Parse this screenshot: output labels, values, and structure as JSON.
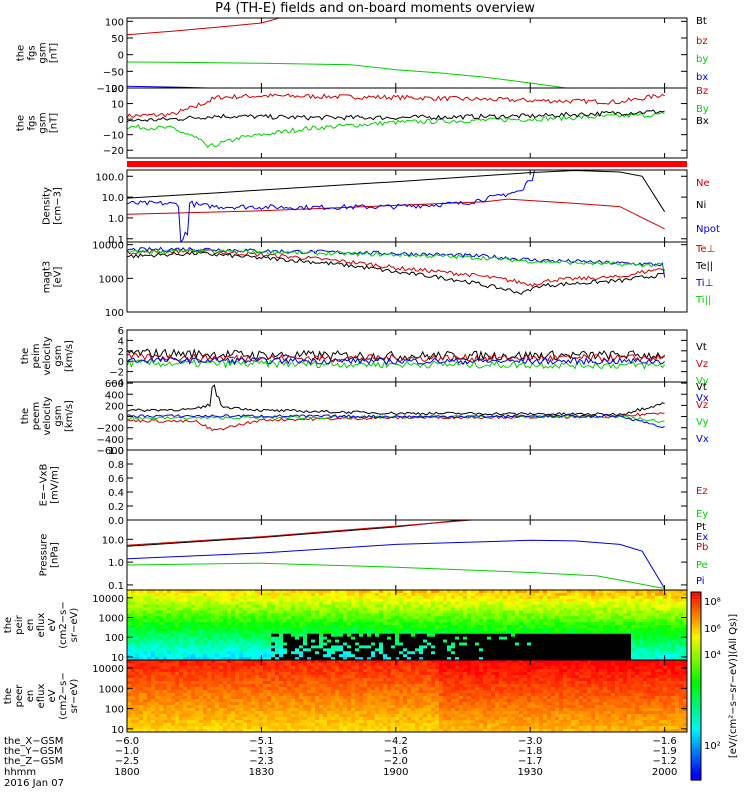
{
  "title": "P4 (TH-E) fields and on-board moments overview",
  "colors": {
    "black": "#000000",
    "red": "#d00000",
    "green": "#00d000",
    "blue": "#0000e0",
    "frame": "#000000"
  },
  "chart_data": [
    {
      "type": "line",
      "id": "fgs_gsm",
      "ylabel": [
        "the",
        "fgs",
        "gsm",
        "[nT]"
      ],
      "y_ticks": [
        {
          "v": 100,
          "t": "100"
        },
        {
          "v": 50,
          "t": "50"
        },
        {
          "v": 0,
          "t": "0"
        },
        {
          "v": -50,
          "t": "−50"
        },
        {
          "v": -100,
          "t": "−100"
        }
      ],
      "ylim": [
        -100,
        110
      ],
      "series": [
        {
          "name": "Bt",
          "color": "black",
          "x": [
            1800,
            1810
          ],
          "y": [
            -100,
            -100
          ]
        },
        {
          "name": "bz",
          "color": "red",
          "x": [
            1800,
            1810,
            1820,
            1830,
            1834
          ],
          "y": [
            60,
            70,
            82,
            95,
            110
          ]
        },
        {
          "name": "by",
          "color": "green",
          "x": [
            1800,
            1810,
            1820,
            1830,
            1840,
            1850,
            1900,
            1910,
            1920,
            1930,
            1938
          ],
          "y": [
            -22,
            -23,
            -24,
            -26,
            -28,
            -30,
            -45,
            -55,
            -68,
            -85,
            -100
          ]
        },
        {
          "name": "bx",
          "color": "blue",
          "x": [
            1800,
            1812,
            1818
          ],
          "y": [
            -95,
            -98,
            -100
          ]
        }
      ]
    },
    {
      "type": "line",
      "id": "fgs_dsl",
      "ylabel": [
        "the",
        "fgs",
        "gsm",
        "[nT]"
      ],
      "y_ticks": [
        {
          "v": 20,
          "t": "20"
        },
        {
          "v": 10,
          "t": "10"
        },
        {
          "v": 0,
          "t": "0"
        },
        {
          "v": -10,
          "t": "−10"
        },
        {
          "v": -20,
          "t": "−20"
        }
      ],
      "ylim": [
        -25,
        20
      ],
      "series": [
        {
          "name": "Bz",
          "color": "red",
          "x": [
            1800,
            1810,
            1815,
            1820,
            1830,
            1900,
            1930,
            1950,
            2000
          ],
          "y": [
            2,
            3,
            8,
            14,
            15,
            14,
            12,
            11,
            16
          ],
          "noise": 1.5
        },
        {
          "name": "By",
          "color": "green",
          "x": [
            1800,
            1810,
            1815,
            1818,
            1825,
            1840,
            1900,
            1930,
            2000
          ],
          "y": [
            -5,
            -6,
            -12,
            -18,
            -12,
            -6,
            -2,
            0,
            3
          ],
          "noise": 1.5
        },
        {
          "name": "Bx",
          "color": "black",
          "x": [
            1800,
            1810,
            1820,
            1840,
            1900,
            1930,
            2000
          ],
          "y": [
            -1,
            0,
            2,
            1,
            1,
            2,
            5
          ],
          "noise": 1.5
        }
      ]
    },
    {
      "type": "line",
      "id": "density",
      "ylabel": [
        "Density",
        "[cm−3]"
      ],
      "log": true,
      "y_ticks": [
        {
          "v": 100,
          "t": "100.0"
        },
        {
          "v": 10,
          "t": "10.0"
        },
        {
          "v": 1,
          "t": "1.0"
        },
        {
          "v": 0.1,
          "t": "0.1"
        }
      ],
      "ylim": [
        0.07,
        200
      ],
      "series": [
        {
          "name": "Ne",
          "color": "red",
          "x": [
            1800,
            1810,
            1830,
            1900,
            1920,
            1925,
            1940,
            1950,
            2000
          ],
          "y": [
            1.5,
            1.7,
            2.2,
            4,
            6,
            8,
            5,
            3.5,
            0.3
          ]
        },
        {
          "name": "Ni",
          "color": "black",
          "x": [
            1800,
            1810,
            1820,
            1830,
            1900,
            1930,
            1940,
            1950,
            1955,
            2000
          ],
          "y": [
            9,
            12,
            16,
            22,
            55,
            150,
            190,
            160,
            100,
            2
          ]
        },
        {
          "name": "Npot",
          "color": "blue",
          "x": [
            1800,
            1808,
            1811,
            1812,
            1813,
            1814,
            1816,
            1820,
            1840,
            1900,
            1915,
            1922,
            1928,
            1930,
            1931
          ],
          "y": [
            5,
            5,
            4.5,
            0.08,
            0.2,
            5,
            4,
            3.5,
            3.2,
            3.5,
            5,
            10,
            20,
            80,
            200
          ],
          "noise": 0.12
        }
      ]
    },
    {
      "type": "line",
      "id": "temps",
      "ylabel": [
        "magt3",
        "[eV]"
      ],
      "log": true,
      "y_ticks": [
        {
          "v": 10000,
          "t": "10000"
        },
        {
          "v": 1000,
          "t": "1000"
        },
        {
          "v": 100,
          "t": "100"
        }
      ],
      "ylim": [
        100,
        12000
      ],
      "series": [
        {
          "name": "Te⊥",
          "color": "red",
          "x": [
            1800,
            1815,
            1830,
            1900,
            1920,
            1930,
            1935,
            1950,
            2000
          ],
          "y": [
            6000,
            6500,
            5000,
            2000,
            1100,
            650,
            900,
            1100,
            2000
          ],
          "noise": 0.06
        },
        {
          "name": "Te||",
          "color": "black",
          "x": [
            1800,
            1815,
            1830,
            1900,
            1920,
            1928,
            1932,
            1950,
            2000
          ],
          "y": [
            4500,
            5500,
            4000,
            1500,
            600,
            360,
            600,
            850,
            1300
          ],
          "noise": 0.06
        },
        {
          "name": "Ti⊥",
          "color": "blue",
          "x": [
            1800,
            1815,
            1830,
            1900,
            1920,
            1930,
            1950,
            1990,
            2000
          ],
          "y": [
            7000,
            7500,
            6500,
            5500,
            4500,
            3500,
            2800,
            1800,
            1000
          ],
          "noise": 0.06
        },
        {
          "name": "Ti||",
          "color": "green",
          "x": [
            1800,
            1815,
            1830,
            1900,
            1920,
            1930,
            1950,
            1990,
            2000
          ],
          "y": [
            6000,
            6500,
            6000,
            5000,
            4000,
            3200,
            2600,
            1900,
            1500
          ],
          "noise": 0.06
        }
      ]
    },
    {
      "type": "line",
      "id": "peim",
      "ylabel": [
        "the",
        "peim",
        "velocity",
        "gsm",
        "[km/s]"
      ],
      "y_ticks": [
        {
          "v": 6,
          "t": "6"
        },
        {
          "v": 4,
          "t": "4"
        },
        {
          "v": 2,
          "t": "2"
        },
        {
          "v": 0,
          "t": "0"
        },
        {
          "v": -2,
          "t": "−2"
        },
        {
          "v": -4,
          "t": "−4"
        }
      ],
      "ylim": [
        -4,
        6
      ],
      "series": [
        {
          "name": "Vt",
          "color": "black",
          "x": [
            1800,
            1830,
            1900,
            2000
          ],
          "y": [
            1.6,
            1.2,
            1,
            1.2
          ],
          "noise": 0.9
        },
        {
          "name": "Vz",
          "color": "red",
          "x": [
            1800,
            1830,
            1900,
            2000
          ],
          "y": [
            0.8,
            0.6,
            0.6,
            0.6
          ],
          "noise": 0.7
        },
        {
          "name": "Vy",
          "color": "green",
          "x": [
            1800,
            1830,
            1900,
            2000
          ],
          "y": [
            -0.4,
            -0.5,
            -0.6,
            -0.8
          ],
          "noise": 0.7
        },
        {
          "name": "Vx",
          "color": "blue",
          "x": [
            1800,
            1830,
            1900,
            2000
          ],
          "y": [
            0.2,
            0.1,
            0,
            0
          ],
          "noise": 0.6
        }
      ]
    },
    {
      "type": "line",
      "id": "peem",
      "ylabel": [
        "the",
        "peem",
        "velocity",
        "gsm",
        "[km/s]"
      ],
      "y_ticks": [
        {
          "v": 600,
          "t": "600"
        },
        {
          "v": 400,
          "t": "400"
        },
        {
          "v": 200,
          "t": "200"
        },
        {
          "v": 0,
          "t": "0"
        },
        {
          "v": -200,
          "t": "−200"
        },
        {
          "v": -400,
          "t": "−400"
        },
        {
          "v": -600,
          "t": "−600"
        }
      ],
      "ylim": [
        -600,
        620
      ],
      "series": [
        {
          "name": "Vt",
          "color": "black",
          "x": [
            1800,
            1815,
            1818,
            1819,
            1821,
            1830,
            1900,
            1950,
            2000
          ],
          "y": [
            110,
            130,
            200,
            550,
            180,
            110,
            60,
            40,
            250
          ],
          "noise": 25
        },
        {
          "name": "Vz",
          "color": "red",
          "x": [
            1800,
            1815,
            1819,
            1830,
            1900,
            1950,
            2000
          ],
          "y": [
            -70,
            -90,
            -250,
            -60,
            -20,
            0,
            80
          ],
          "noise": 25
        },
        {
          "name": "Vy",
          "color": "green",
          "x": [
            1800,
            1830,
            1900,
            1950,
            2000
          ],
          "y": [
            -30,
            -20,
            -10,
            0,
            -100
          ],
          "noise": 25
        },
        {
          "name": "Vx",
          "color": "blue",
          "x": [
            1800,
            1830,
            1900,
            1950,
            2000
          ],
          "y": [
            10,
            10,
            0,
            10,
            -200
          ],
          "noise": 25
        }
      ]
    },
    {
      "type": "line",
      "id": "efield",
      "ylabel": [
        "E=−VxB",
        "[mV/m]"
      ],
      "y_ticks": [
        {
          "v": 1,
          "t": "1.0"
        },
        {
          "v": 0.8,
          "t": "0.8"
        },
        {
          "v": 0.6,
          "t": "0.6"
        },
        {
          "v": 0.4,
          "t": "0.4"
        },
        {
          "v": 0.2,
          "t": "0.2"
        },
        {
          "v": 0,
          "t": "0.0"
        }
      ],
      "ylim": [
        0,
        1
      ],
      "series": [
        {
          "name": "Ez",
          "color": "red",
          "x": [],
          "y": []
        },
        {
          "name": "Ey",
          "color": "green",
          "x": [],
          "y": []
        },
        {
          "name": "Ex",
          "color": "blue",
          "x": [],
          "y": []
        }
      ]
    },
    {
      "type": "line",
      "id": "pressure",
      "ylabel": [
        "Pressure",
        "[nPa]"
      ],
      "log": true,
      "y_ticks": [
        {
          "v": 10,
          "t": "10.0"
        },
        {
          "v": 1,
          "t": "1.0"
        },
        {
          "v": 0.1,
          "t": "0.1"
        }
      ],
      "ylim": [
        0.06,
        70
      ],
      "series": [
        {
          "name": "Pt",
          "color": "black",
          "x": [
            1800,
            1830,
            1900,
            1915
          ],
          "y": [
            5,
            12,
            35,
            70
          ]
        },
        {
          "name": "Pb",
          "color": "red",
          "x": [
            1800,
            1830,
            1900,
            1917
          ],
          "y": [
            5.5,
            13,
            38,
            70
          ]
        },
        {
          "name": "Pe",
          "color": "green",
          "x": [
            1800,
            1830,
            1900,
            1930,
            1945,
            2000
          ],
          "y": [
            0.75,
            0.9,
            0.6,
            0.35,
            0.25,
            0.07
          ]
        },
        {
          "name": "Pi",
          "color": "blue",
          "x": [
            1800,
            1830,
            1900,
            1930,
            1940,
            1950,
            1955,
            2000
          ],
          "y": [
            1.4,
            2.5,
            6,
            9,
            8.5,
            6,
            3,
            0.07
          ]
        }
      ]
    },
    {
      "type": "heatmap",
      "id": "peir",
      "ylabel": [
        "the",
        "peir",
        "en",
        "eflux",
        "eV",
        "(cm2−s−",
        "sr−eV)"
      ],
      "log": true,
      "y_ticks": [
        {
          "v": 10000,
          "t": "10000"
        },
        {
          "v": 1000,
          "t": "1000"
        },
        {
          "v": 100,
          "t": "100"
        },
        {
          "v": 10,
          "t": "10"
        }
      ],
      "ylim": [
        7,
        25000
      ]
    },
    {
      "type": "heatmap",
      "id": "peer",
      "ylabel": [
        "the",
        "peer",
        "en",
        "eflux",
        "eV",
        "(cm2−s−",
        "sr−eV)"
      ],
      "log": true,
      "y_ticks": [
        {
          "v": 10000,
          "t": "10000"
        },
        {
          "v": 1000,
          "t": "1000"
        },
        {
          "v": 100,
          "t": "100"
        },
        {
          "v": 10,
          "t": "10"
        }
      ],
      "ylim": [
        7,
        25000
      ]
    }
  ],
  "colorbar": {
    "ticks": [
      "10⁸",
      "10⁶",
      "10⁴",
      "10²"
    ],
    "label": "[eV/(cm²−s−sr−eV)](All Qs)]"
  },
  "x_axis": {
    "ticks": [
      1800,
      1830,
      1900,
      1930,
      2000
    ],
    "rows": [
      {
        "label": "the_X−GSM",
        "values": [
          "−6.0",
          "−5.1",
          "−4.2",
          "−3.0",
          "−1.6"
        ]
      },
      {
        "label": "the_Y−GSM",
        "values": [
          "−1.0",
          "−1.3",
          "−1.6",
          "−1.8",
          "−1.9"
        ]
      },
      {
        "label": "the_Z−GSM",
        "values": [
          "−2.5",
          "−2.3",
          "−2.0",
          "−1.7",
          "−1.2"
        ]
      },
      {
        "label": "hhmm",
        "values": [
          "1800",
          "1830",
          "1900",
          "1930",
          "2000"
        ]
      }
    ],
    "date": "2016 Jan 07"
  }
}
